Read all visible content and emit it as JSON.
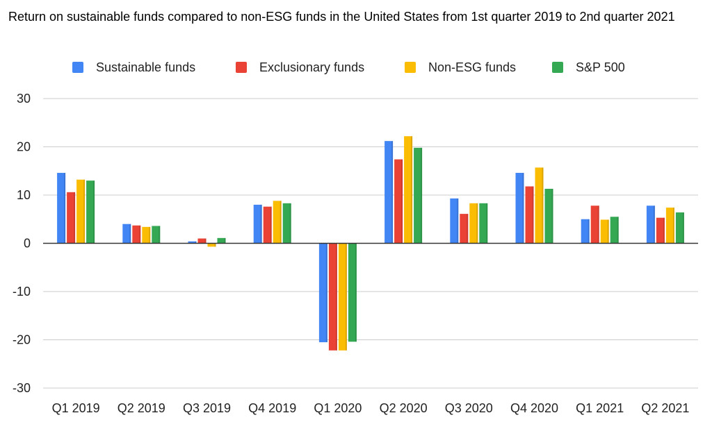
{
  "chart_data": {
    "type": "bar",
    "title": "Return on sustainable funds compared to non-ESG funds in the United States from 1st quarter 2019 to 2nd quarter 2021",
    "xlabel": "",
    "ylabel": "",
    "ylim": [
      -30,
      30
    ],
    "yticks": [
      30,
      20,
      10,
      0,
      -10,
      -20,
      -30
    ],
    "grid": true,
    "legend_position": "top",
    "categories": [
      "Q1 2019",
      "Q2 2019",
      "Q3 2019",
      "Q4 2019",
      "Q1 2020",
      "Q2 2020",
      "Q3 2020",
      "Q4 2020",
      "Q1 2021",
      "Q2 2021"
    ],
    "series": [
      {
        "name": "Sustainable funds",
        "color": "#4285F4",
        "values": [
          14.6,
          4.0,
          0.4,
          8.0,
          -20.5,
          21.2,
          9.3,
          14.6,
          5.0,
          7.8
        ]
      },
      {
        "name": "Exclusionary funds",
        "color": "#EA4335",
        "values": [
          10.6,
          3.7,
          1.0,
          7.6,
          -22.2,
          17.4,
          6.1,
          11.8,
          7.8,
          5.3
        ]
      },
      {
        "name": "Non-ESG funds",
        "color": "#FBBC04",
        "values": [
          13.2,
          3.4,
          -0.7,
          8.8,
          -22.2,
          22.2,
          8.3,
          15.7,
          4.9,
          7.4
        ]
      },
      {
        "name": "S&P 500",
        "color": "#34A853",
        "values": [
          13.0,
          3.6,
          1.1,
          8.3,
          -20.4,
          19.8,
          8.3,
          11.3,
          5.5,
          6.4
        ]
      }
    ]
  }
}
